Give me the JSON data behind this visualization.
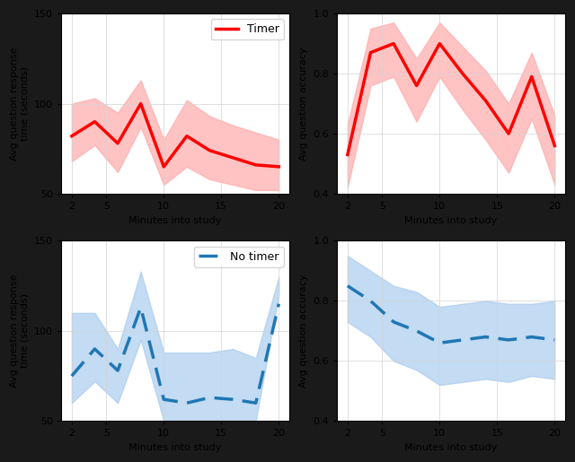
{
  "x": [
    2,
    4,
    6,
    8,
    10,
    12,
    14,
    16,
    18,
    20
  ],
  "timer_time_mean": [
    82,
    90,
    78,
    100,
    65,
    82,
    74,
    70,
    66,
    65
  ],
  "timer_time_upper": [
    100,
    103,
    95,
    113,
    80,
    102,
    93,
    88,
    84,
    80
  ],
  "timer_time_lower": [
    68,
    77,
    62,
    87,
    55,
    65,
    58,
    55,
    52,
    52
  ],
  "timer_acc_mean": [
    0.53,
    0.87,
    0.9,
    0.76,
    0.9,
    0.8,
    0.71,
    0.6,
    0.79,
    0.56
  ],
  "timer_acc_upper": [
    0.63,
    0.95,
    0.97,
    0.85,
    0.97,
    0.89,
    0.81,
    0.7,
    0.87,
    0.66
  ],
  "timer_acc_lower": [
    0.42,
    0.76,
    0.79,
    0.64,
    0.79,
    0.68,
    0.58,
    0.47,
    0.65,
    0.43
  ],
  "notimer_time_mean": [
    75,
    90,
    78,
    113,
    62,
    60,
    63,
    62,
    60,
    115
  ],
  "notimer_time_upper": [
    110,
    110,
    90,
    133,
    88,
    88,
    88,
    90,
    85,
    130
  ],
  "notimer_time_lower": [
    60,
    72,
    60,
    95,
    50,
    50,
    48,
    48,
    50,
    120
  ],
  "notimer_acc_mean": [
    0.85,
    0.8,
    0.73,
    0.7,
    0.66,
    0.67,
    0.68,
    0.67,
    0.68,
    0.67
  ],
  "notimer_acc_upper": [
    0.95,
    0.9,
    0.85,
    0.83,
    0.78,
    0.79,
    0.8,
    0.79,
    0.79,
    0.8
  ],
  "notimer_acc_lower": [
    0.73,
    0.68,
    0.6,
    0.57,
    0.52,
    0.53,
    0.54,
    0.53,
    0.55,
    0.54
  ],
  "red_line": "#ff0000",
  "red_fill": "#ffaaaa",
  "blue_line": "#1f77b4",
  "blue_fill": "#aaccee",
  "background": "#1a1a1a",
  "axes_bg": "#ffffff",
  "ylabel_time": "Avg question response\ntime (seconds)",
  "ylabel_acc": "Avg question accuracy",
  "xlabel": "Minutes into study",
  "ylim_time": [
    50,
    150
  ],
  "ylim_acc": [
    0.4,
    1.0
  ],
  "xticks": [
    2,
    5,
    10,
    15,
    20
  ],
  "yticks_time": [
    50,
    100,
    150
  ],
  "yticks_acc": [
    0.4,
    0.6,
    0.8,
    1.0
  ]
}
